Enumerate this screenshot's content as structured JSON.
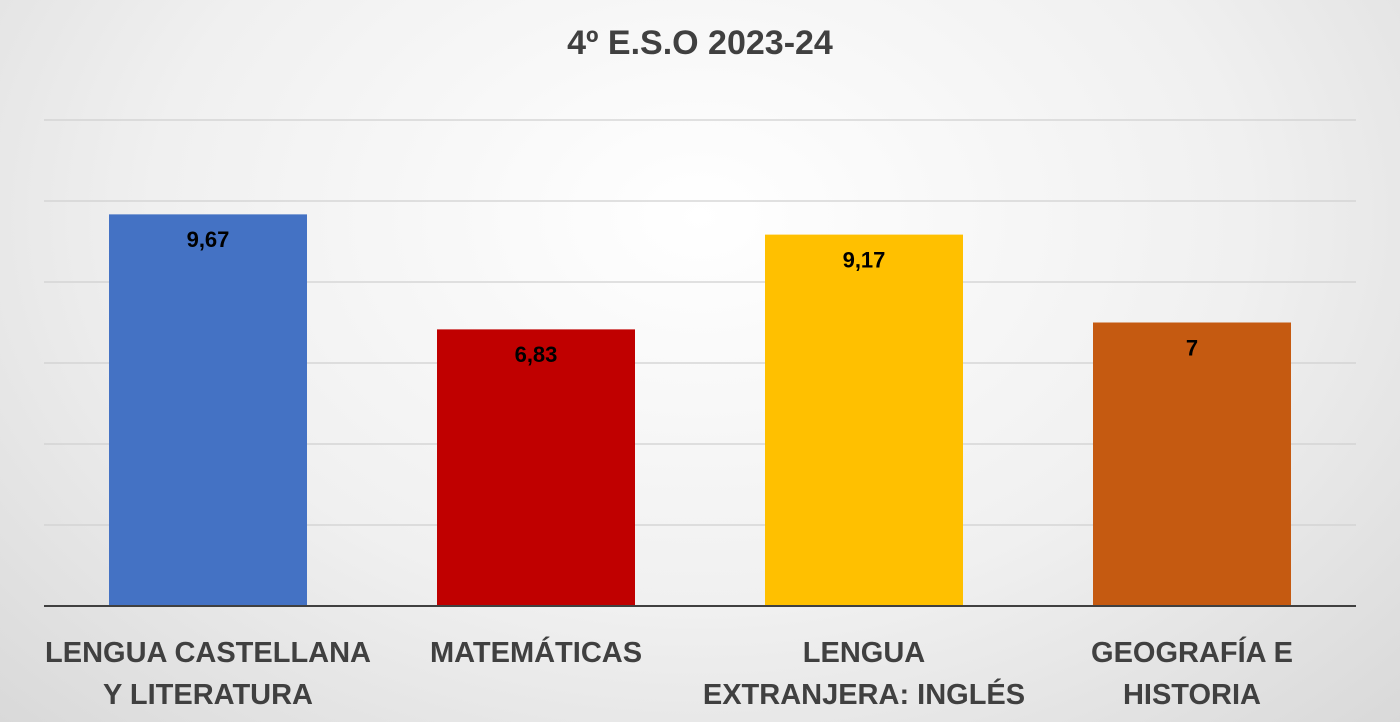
{
  "chart_data": {
    "type": "bar",
    "title": "4º E.S.O 2023-24",
    "categories": [
      "LENGUA CASTELLANA Y LITERATURA",
      "MATEMÁTICAS",
      "LENGUA EXTRANJERA: INGLÉS",
      "GEOGRAFÍA E HISTORIA"
    ],
    "values": [
      9.67,
      6.83,
      9.17,
      7
    ],
    "value_labels": [
      "9,67",
      "6,83",
      "9,17",
      "7"
    ],
    "colors": [
      "#4472c4",
      "#c00000",
      "#ffc000",
      "#c55a11"
    ],
    "ylim": [
      0,
      12
    ],
    "yticks": [
      0,
      2,
      4,
      6,
      8,
      10,
      12
    ],
    "grid": true
  }
}
